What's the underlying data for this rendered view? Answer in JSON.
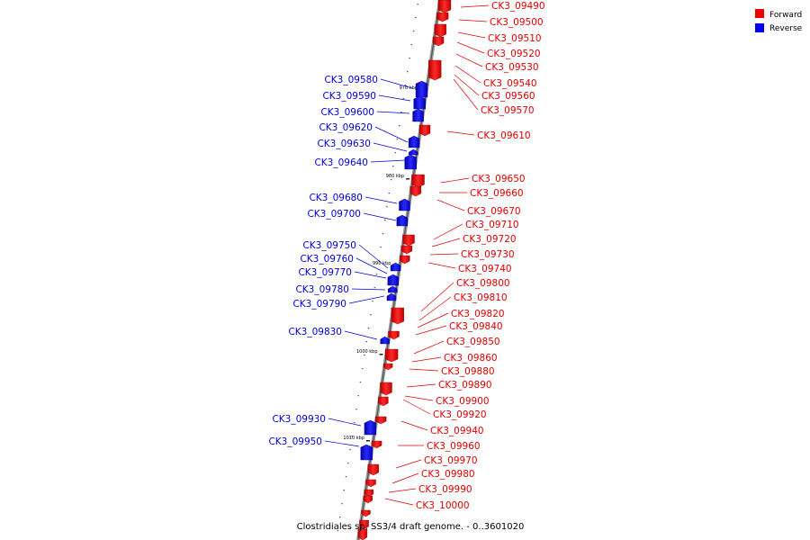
{
  "caption": "Clostridiales sp. SS3/4 draft genome. - 0..3601020",
  "legend": [
    {
      "label": "Forward",
      "color": "#ee0000"
    },
    {
      "label": "Reverse",
      "color": "#0000ee"
    }
  ],
  "ticks": [
    "970 kbp",
    "980 kbp",
    "990 kbp",
    "1000 kbp",
    "1010 kbp"
  ],
  "forward_genes": [
    "CK3_09490",
    "CK3_09500",
    "CK3_09510",
    "CK3_09520",
    "CK3_09530",
    "CK3_09540",
    "CK3_09560",
    "CK3_09570",
    "CK3_09610",
    "CK3_09650",
    "CK3_09660",
    "CK3_09670",
    "CK3_09710",
    "CK3_09720",
    "CK3_09730",
    "CK3_09740",
    "CK3_09800",
    "CK3_09810",
    "CK3_09820",
    "CK3_09840",
    "CK3_09850",
    "CK3_09860",
    "CK3_09880",
    "CK3_09890",
    "CK3_09900",
    "CK3_09920",
    "CK3_09940",
    "CK3_09960",
    "CK3_09970",
    "CK3_09980",
    "CK3_09990",
    "CK3_10000"
  ],
  "reverse_genes": [
    "CK3_09580",
    "CK3_09590",
    "CK3_09600",
    "CK3_09620",
    "CK3_09630",
    "CK3_09640",
    "CK3_09680",
    "CK3_09700",
    "CK3_09750",
    "CK3_09760",
    "CK3_09770",
    "CK3_09780",
    "CK3_09790",
    "CK3_09830",
    "CK3_09930",
    "CK3_09950"
  ]
}
